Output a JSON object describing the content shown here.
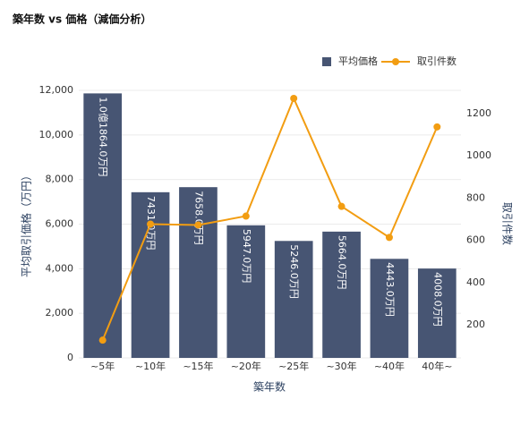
{
  "chart_data": {
    "type": "bar",
    "title": "築年数 vs 価格（減価分析）",
    "x_label": "築年数",
    "y_label": "平均取引価格（万円）",
    "y2_label": "取引件数",
    "categories": [
      "~5年",
      "~10年",
      "~15年",
      "~20年",
      "~25年",
      "~30年",
      "~40年",
      "40年~"
    ],
    "series": [
      {
        "name": "平均価格",
        "type": "bar",
        "color": "#475573",
        "values": [
          11864,
          7431,
          7658,
          5947,
          5246,
          5664,
          4443,
          4008
        ],
        "value_labels": [
          "1.0億1864.0万円",
          "7431.0万円",
          "7658.0万円",
          "5947.0万円",
          "5246.0万円",
          "5664.0万円",
          "4443.0万円",
          "4008.0万円"
        ]
      },
      {
        "name": "取引件数",
        "type": "line",
        "color": "#f29d12",
        "axis": "y2",
        "values": [
          128,
          677,
          673,
          715,
          1272,
          761,
          614,
          1137
        ]
      }
    ],
    "ylim": [
      0,
      12000
    ],
    "yticks": [
      0,
      {
        "value": 2000,
        "label": "2,000"
      },
      {
        "value": 4000,
        "label": "4,000"
      },
      {
        "value": 6000,
        "label": "6,000"
      },
      {
        "value": 8000,
        "label": "8,000"
      },
      {
        "value": 10000,
        "label": "10,000"
      },
      {
        "value": 12000,
        "label": "12,000"
      }
    ],
    "y2lim": [
      44,
      1310
    ],
    "y2ticks": [
      200,
      400,
      600,
      800,
      1000,
      1200
    ],
    "grid": true,
    "legend": "top-right"
  }
}
